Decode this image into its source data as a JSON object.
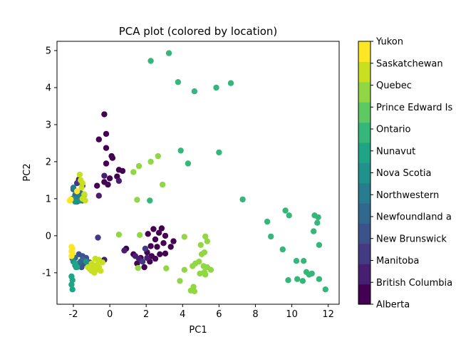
{
  "chart_data": {
    "type": "scatter",
    "title": "PCA plot (colored by location)",
    "xlabel": "PC1",
    "ylabel": "PC2",
    "xlim": [
      -2.9,
      12.6
    ],
    "ylim": [
      -1.85,
      5.25
    ],
    "xticks": [
      -2,
      0,
      2,
      4,
      6,
      8,
      10,
      12
    ],
    "yticks": [
      -1,
      0,
      1,
      2,
      3,
      4,
      5
    ],
    "grid": false,
    "legend": "colorbar-right",
    "colorbar_labels": [
      "Alberta",
      "British Columbia",
      "Manitoba",
      "New Brunswick",
      "Newfoundland a",
      "Northwestern",
      "Nova Scotia",
      "Nunavut",
      "Ontario",
      "Prince Edward Is",
      "Quebec",
      "Saskatchewan",
      "Yukon"
    ],
    "colorbar_colors": [
      "#440154",
      "#481f70",
      "#443983",
      "#3b528b",
      "#31688e",
      "#287c8e",
      "#21918c",
      "#20a486",
      "#35b779",
      "#5ec962",
      "#90d743",
      "#c8e020",
      "#fde725"
    ],
    "series": [
      {
        "name": "Alberta",
        "color": "#440154",
        "points": [
          [
            -0.3,
            3.28
          ],
          [
            -0.2,
            2.75
          ],
          [
            -0.6,
            2.6
          ],
          [
            -0.2,
            2.37
          ],
          [
            0.1,
            2.15
          ],
          [
            0.15,
            2.1
          ],
          [
            -0.2,
            1.95
          ],
          [
            0.5,
            1.78
          ],
          [
            0.7,
            1.75
          ],
          [
            0.4,
            1.6
          ],
          [
            0.0,
            1.55
          ],
          [
            -0.3,
            1.45
          ],
          [
            -0.1,
            1.38
          ],
          [
            -0.7,
            1.35
          ],
          [
            0.9,
            -0.35
          ],
          [
            1.3,
            -0.5
          ],
          [
            1.7,
            -0.6
          ],
          [
            2.1,
            0.05
          ],
          [
            2.4,
            0.18
          ],
          [
            2.7,
            0.08
          ],
          [
            2.85,
            0.2
          ],
          [
            3.05,
            0.0
          ],
          [
            2.5,
            -0.1
          ],
          [
            2.25,
            -0.28
          ],
          [
            2.6,
            -0.3
          ],
          [
            2.95,
            -0.2
          ],
          [
            3.35,
            -0.3
          ],
          [
            3.5,
            -0.15
          ],
          [
            2.3,
            -0.55
          ],
          [
            2.5,
            -0.62
          ],
          [
            3.05,
            -0.48
          ],
          [
            2.05,
            -0.45
          ],
          [
            1.9,
            -0.85
          ],
          [
            1.5,
            -0.75
          ],
          [
            2.2,
            -0.7
          ],
          [
            2.75,
            -0.5
          ]
        ]
      },
      {
        "name": "British Columbia",
        "color": "#481f70",
        "points": [
          [
            -0.3,
            1.62
          ],
          [
            0.5,
            1.48
          ],
          [
            -0.6,
            1.08
          ],
          [
            -1.7,
            1.52
          ],
          [
            0.8,
            -0.4
          ],
          [
            1.4,
            -0.55
          ],
          [
            1.6,
            -0.62
          ],
          [
            2.05,
            -0.6
          ],
          [
            -0.3,
            -0.65
          ]
        ]
      },
      {
        "name": "Manitoba",
        "color": "#443983",
        "points": [
          [
            -0.65,
            -0.05
          ],
          [
            -1.8,
            1.42
          ],
          [
            -1.5,
            1.35
          ],
          [
            1.95,
            -0.35
          ],
          [
            1.8,
            -0.7
          ]
        ]
      },
      {
        "name": "New Brunswick",
        "color": "#3b528b",
        "points": [
          [
            -1.7,
            -0.5
          ],
          [
            -1.5,
            -0.55
          ],
          [
            -1.3,
            -0.6
          ],
          [
            -1.6,
            -0.7
          ],
          [
            -1.4,
            -0.75
          ],
          [
            -1.2,
            -0.8
          ],
          [
            -1.55,
            -0.85
          ],
          [
            -1.3,
            -0.65
          ],
          [
            -1.1,
            -0.72
          ]
        ]
      },
      {
        "name": "Newfoundland a",
        "color": "#31688e",
        "points": [
          [
            -2.0,
            1.25
          ],
          [
            -1.9,
            1.1
          ],
          [
            -1.7,
            1.0
          ],
          [
            -1.8,
            0.92
          ],
          [
            -1.6,
            1.15
          ],
          [
            -1.5,
            0.95
          ],
          [
            -1.9,
            -0.6
          ],
          [
            -1.7,
            -0.75
          ],
          [
            -1.5,
            -0.65
          ]
        ]
      },
      {
        "name": "Northwestern",
        "color": "#287c8e",
        "points": [
          [
            -2.0,
            1.3
          ],
          [
            -1.85,
            1.2
          ],
          [
            -1.75,
            1.05
          ],
          [
            -1.95,
            0.98
          ],
          [
            -1.6,
            1.05
          ],
          [
            -2.05,
            -0.62
          ],
          [
            -1.9,
            -0.8
          ]
        ]
      },
      {
        "name": "Nova Scotia",
        "color": "#21918c",
        "points": [
          [
            -2.05,
            1.0
          ],
          [
            -1.9,
            0.92
          ],
          [
            -1.65,
            0.95
          ],
          [
            -2.0,
            -0.7
          ],
          [
            -1.85,
            -0.85
          ],
          [
            -1.3,
            -0.7
          ]
        ]
      },
      {
        "name": "Nunavut",
        "color": "#20a486",
        "points": [
          [
            -2.1,
            -1.1
          ],
          [
            -2.05,
            -1.2
          ],
          [
            -2.1,
            -1.32
          ],
          [
            -2.05,
            -1.45
          ],
          [
            -1.9,
            -0.75
          ],
          [
            -1.8,
            -0.85
          ]
        ]
      },
      {
        "name": "Ontario",
        "color": "#35b779",
        "points": [
          [
            2.25,
            4.72
          ],
          [
            3.25,
            4.93
          ],
          [
            3.75,
            4.15
          ],
          [
            4.65,
            3.9
          ],
          [
            5.85,
            4.0
          ],
          [
            6.65,
            4.12
          ],
          [
            3.9,
            2.3
          ],
          [
            4.3,
            1.95
          ],
          [
            6.0,
            2.25
          ],
          [
            2.2,
            0.95
          ],
          [
            7.3,
            0.98
          ],
          [
            8.65,
            0.38
          ],
          [
            8.85,
            -0.02
          ],
          [
            9.65,
            0.68
          ],
          [
            9.85,
            0.55
          ],
          [
            11.25,
            0.55
          ],
          [
            11.45,
            0.5
          ],
          [
            11.4,
            0.35
          ],
          [
            11.2,
            0.12
          ],
          [
            11.5,
            -0.25
          ],
          [
            9.5,
            -0.37
          ],
          [
            10.25,
            -0.68
          ],
          [
            10.65,
            -0.68
          ],
          [
            10.8,
            -0.98
          ],
          [
            10.95,
            -1.05
          ],
          [
            11.1,
            -1.02
          ],
          [
            10.3,
            -1.17
          ],
          [
            10.6,
            -1.22
          ],
          [
            11.5,
            -1.17
          ],
          [
            9.8,
            -1.2
          ],
          [
            11.85,
            -1.45
          ]
        ]
      },
      {
        "name": "Prince Edward Is",
        "color": "#5ec962",
        "points": [
          [
            -1.4,
            1.1
          ]
        ]
      },
      {
        "name": "Quebec",
        "color": "#90d743",
        "points": [
          [
            1.3,
            1.72
          ],
          [
            1.6,
            1.88
          ],
          [
            2.25,
            2.0
          ],
          [
            2.65,
            2.15
          ],
          [
            2.9,
            1.38
          ],
          [
            1.5,
            0.97
          ],
          [
            0.5,
            0.03
          ],
          [
            1.65,
            0.02
          ],
          [
            4.1,
            -0.03
          ],
          [
            5.25,
            -0.02
          ],
          [
            5.35,
            -0.15
          ],
          [
            5.0,
            -0.25
          ],
          [
            5.2,
            -0.45
          ],
          [
            5.05,
            -0.5
          ],
          [
            4.7,
            -0.75
          ],
          [
            4.55,
            -0.82
          ],
          [
            4.9,
            -0.7
          ],
          [
            5.15,
            -0.82
          ],
          [
            5.35,
            -0.85
          ],
          [
            5.55,
            -0.92
          ],
          [
            5.2,
            -0.98
          ],
          [
            4.95,
            -1.02
          ],
          [
            5.25,
            -1.05
          ],
          [
            4.1,
            -0.92
          ],
          [
            3.1,
            -0.88
          ],
          [
            1.55,
            -0.87
          ],
          [
            3.85,
            -1.22
          ],
          [
            4.45,
            -1.48
          ],
          [
            4.6,
            -1.38
          ],
          [
            4.65,
            -1.5
          ]
        ]
      },
      {
        "name": "Saskatchewan",
        "color": "#c8e020",
        "points": [
          [
            -1.65,
            1.65
          ],
          [
            -1.6,
            1.5
          ],
          [
            -1.5,
            1.42
          ],
          [
            -1.55,
            1.3
          ],
          [
            -1.4,
            1.12
          ],
          [
            -1.5,
            1.0
          ],
          [
            -1.35,
            0.95
          ],
          [
            -1.0,
            -0.75
          ],
          [
            -0.8,
            -0.62
          ],
          [
            -0.6,
            -0.65
          ],
          [
            -0.4,
            -0.72
          ],
          [
            -0.9,
            -0.85
          ],
          [
            -1.1,
            -0.9
          ],
          [
            -0.75,
            -0.92
          ],
          [
            -0.85,
            -1.0
          ],
          [
            -0.6,
            -0.85
          ],
          [
            -0.5,
            -0.95
          ],
          [
            -0.7,
            -0.78
          ],
          [
            -1.0,
            -0.95
          ],
          [
            -1.2,
            -0.85
          ]
        ]
      },
      {
        "name": "Yukon",
        "color": "#fde725",
        "points": [
          [
            -2.15,
            0.98
          ],
          [
            -2.2,
            0.95
          ],
          [
            -1.8,
            1.2
          ],
          [
            -2.1,
            -0.3
          ],
          [
            -2.05,
            -0.35
          ],
          [
            -2.1,
            -0.42
          ],
          [
            -2.05,
            -0.48
          ],
          [
            -2.1,
            -0.55
          ]
        ]
      }
    ]
  }
}
